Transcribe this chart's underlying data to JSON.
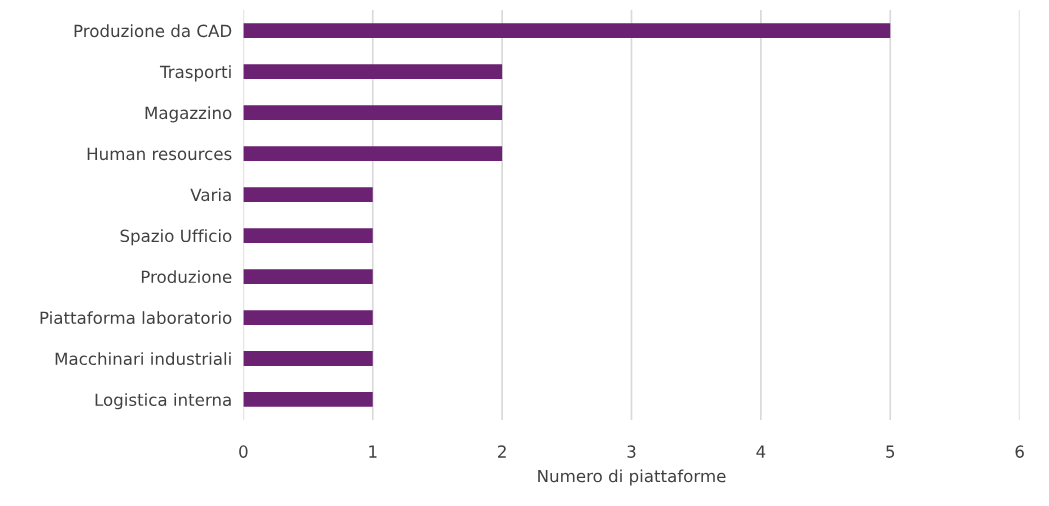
{
  "chart_data": {
    "type": "bar",
    "orientation": "horizontal",
    "xlabel": "Numero di piattaforme",
    "categories": [
      "Produzione da CAD",
      "Trasporti",
      "Magazzino",
      "Human resources",
      "Varia",
      "Spazio Ufficio",
      "Produzione",
      "Piattaforma laboratorio",
      "Macchinari industriali",
      "Logistica interna"
    ],
    "values": [
      5,
      2,
      2,
      2,
      1,
      1,
      1,
      1,
      1,
      1
    ],
    "color": "#6b2272",
    "xlim": [
      0,
      6
    ],
    "xticks": [
      0,
      1,
      2,
      3,
      4,
      5,
      6
    ],
    "grid": "x"
  }
}
